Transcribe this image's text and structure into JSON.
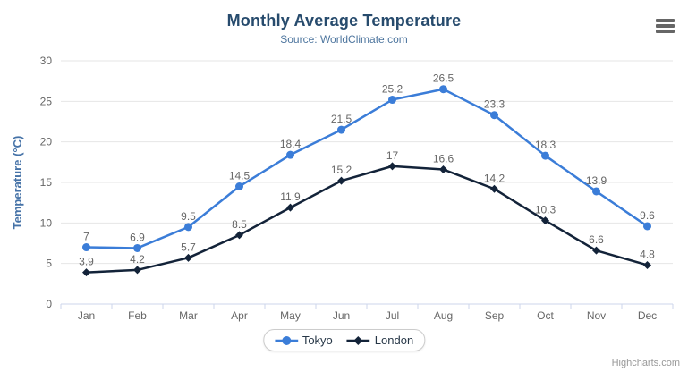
{
  "credits": {
    "label": "Highcharts.com"
  },
  "context_menu": {
    "icon": "hamburger-icon"
  },
  "colors": {
    "title": "#274b6d",
    "subtitle": "#4d759e",
    "axis_title": "#4572a7",
    "axis_labels": "#666666",
    "data_labels": "#666666",
    "gridline": "#e6e6e6",
    "axis_line": "#ccd6eb",
    "legend_border": "#cccccc",
    "legend_text": "#273747",
    "credits": "#999999",
    "background": "#ffffff"
  },
  "chart_data": {
    "type": "line",
    "title": "Monthly Average Temperature",
    "subtitle": "Source: WorldClimate.com",
    "categories": [
      "Jan",
      "Feb",
      "Mar",
      "Apr",
      "May",
      "Jun",
      "Jul",
      "Aug",
      "Sep",
      "Oct",
      "Nov",
      "Dec"
    ],
    "series": [
      {
        "name": "Tokyo",
        "color": "#3b7dd8",
        "marker": "circle",
        "values": [
          7,
          6.9,
          9.5,
          14.5,
          18.4,
          21.5,
          25.2,
          26.5,
          23.3,
          18.3,
          13.9,
          9.6
        ]
      },
      {
        "name": "London",
        "color": "#132339",
        "marker": "diamond",
        "values": [
          3.9,
          4.2,
          5.7,
          8.5,
          11.9,
          15.2,
          17,
          16.6,
          14.2,
          10.3,
          6.6,
          4.8
        ]
      }
    ],
    "xlabel": "",
    "ylabel": "Temperature (°C)",
    "ylim": [
      0,
      30
    ],
    "ytick_interval": 5,
    "yticks": [
      0,
      5,
      10,
      15,
      20,
      25,
      30
    ],
    "grid": "on",
    "data_labels": "on",
    "legend_position": "bottom-center"
  }
}
